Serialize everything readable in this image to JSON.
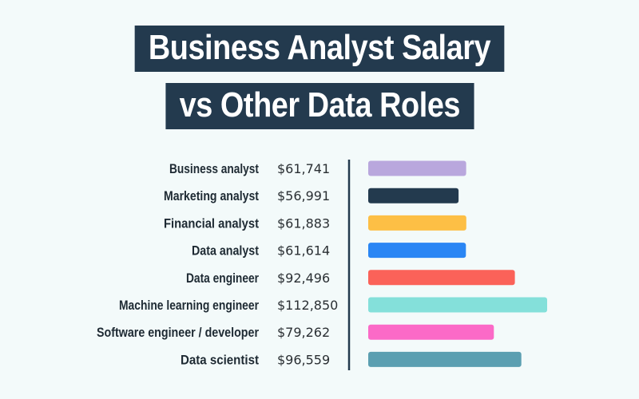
{
  "title": {
    "line1": "Business Analyst Salary",
    "line2": "vs Other Data Roles"
  },
  "chart_data": {
    "type": "bar",
    "orientation": "horizontal",
    "categories": [
      "Business analyst",
      "Marketing analyst",
      "Financial analyst",
      "Data analyst",
      "Data engineer",
      "Machine learning engineer",
      "Software engineer / developer",
      "Data scientist"
    ],
    "values": [
      61741,
      56991,
      61883,
      61614,
      92496,
      112850,
      79262,
      96559
    ],
    "value_labels": [
      "$61,741",
      "$56,991",
      "$61,883",
      "$61,614",
      "$92,496",
      "$112,850",
      "$79,262",
      "$96,559"
    ],
    "colors": [
      "#b9a7dd",
      "#233a4e",
      "#fdbf45",
      "#2a86f4",
      "#fb6259",
      "#84e0da",
      "#fb6ac7",
      "#5b9fb1"
    ],
    "title": "",
    "xlabel": "",
    "ylabel": "",
    "grid": false
  }
}
